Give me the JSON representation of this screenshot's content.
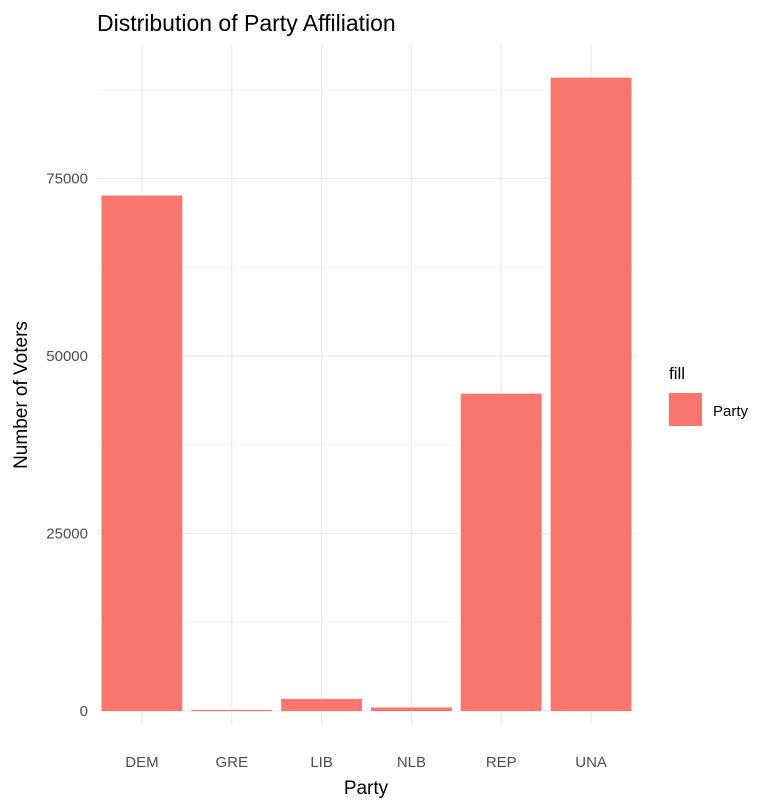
{
  "chart_data": {
    "type": "bar",
    "title": "Distribution of Party Affiliation",
    "xlabel": "Party",
    "ylabel": "Number of Voters",
    "categories": [
      "DEM",
      "GRE",
      "LIB",
      "NLB",
      "REP",
      "UNA"
    ],
    "values": [
      72600,
      150,
      1700,
      500,
      44700,
      89200
    ],
    "ylim": [
      0,
      93000
    ],
    "yticks": [
      0,
      25000,
      50000,
      75000
    ],
    "ytick_labels": [
      "0",
      "25000",
      "50000",
      "75000"
    ],
    "grid": true,
    "legend": {
      "title": "fill",
      "placement": "right",
      "entries": [
        {
          "label": "Party",
          "color": "#F8766D"
        }
      ]
    },
    "bar_color": "#F8766D",
    "grid_color": "#ebebeb"
  }
}
